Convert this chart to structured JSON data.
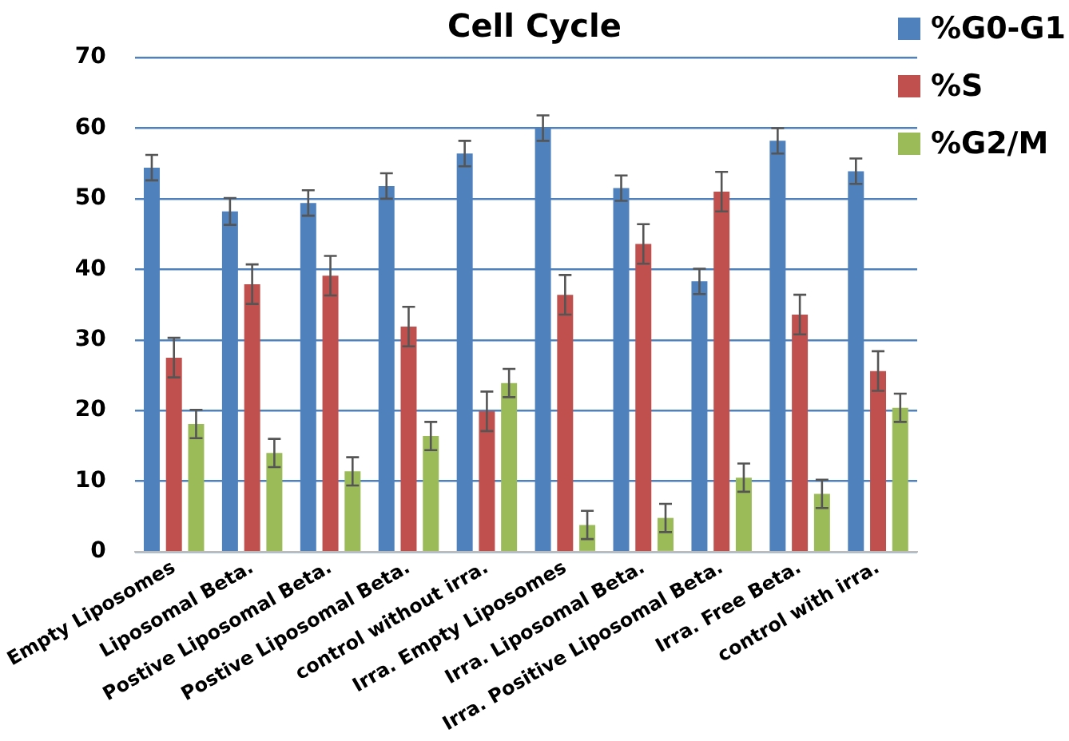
{
  "chart_data": {
    "type": "bar",
    "title": "Cell Cycle",
    "categories": [
      "Empty Liposomes",
      "Liposomal Beta.",
      "Postive Liposomal Beta.",
      "Postive Liposomal Beta.",
      "control without irra.",
      "Irra. Empty Liposomes",
      "Irra. Liposomal Beta.",
      "Irra. Positive Liposomal Beta.",
      "Irra. Free Beta.",
      "control with irra."
    ],
    "series": [
      {
        "name": "%G0-G1",
        "color": "#4f81bd",
        "values": [
          54.4,
          48.2,
          49.4,
          51.8,
          56.4,
          60,
          51.5,
          38.3,
          58.2,
          53.9
        ],
        "errors": [
          1.8,
          1.9,
          1.8,
          1.8,
          1.8,
          1.8,
          1.8,
          1.8,
          1.8,
          1.8
        ]
      },
      {
        "name": "%S",
        "color": "#c0504d",
        "values": [
          27.5,
          37.9,
          39.1,
          31.9,
          19.9,
          36.4,
          43.6,
          51,
          33.6,
          25.6
        ],
        "errors": [
          2.8,
          2.8,
          2.8,
          2.8,
          2.8,
          2.8,
          2.8,
          2.8,
          2.8,
          2.8
        ]
      },
      {
        "name": "%G2/M",
        "color": "#9bbb59",
        "values": [
          18.1,
          14,
          11.4,
          16.4,
          23.9,
          3.8,
          4.8,
          10.5,
          8.2,
          20.4
        ],
        "errors": [
          2,
          2,
          2,
          2,
          2,
          2,
          2,
          2,
          2,
          2
        ]
      }
    ],
    "ylim": [
      0,
      70
    ],
    "yticks": [
      0,
      10,
      20,
      30,
      40,
      50,
      60,
      70
    ],
    "grid": "y",
    "legend": "top right"
  }
}
